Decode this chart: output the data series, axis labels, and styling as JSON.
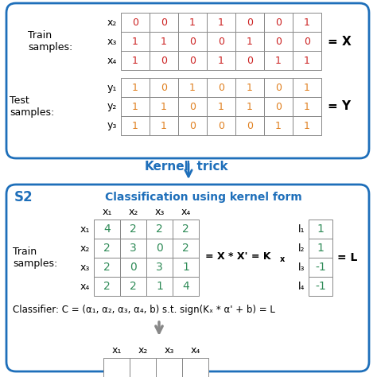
{
  "top_box": {
    "train_rows": [
      "x₂",
      "x₃",
      "x₄"
    ],
    "test_rows": [
      "y₁",
      "y₂",
      "y₃"
    ],
    "train_data": [
      [
        0,
        0,
        1,
        1,
        0,
        0,
        1
      ],
      [
        1,
        1,
        0,
        0,
        1,
        0,
        0
      ],
      [
        1,
        0,
        0,
        1,
        0,
        1,
        1
      ]
    ],
    "test_data": [
      [
        1,
        0,
        1,
        0,
        1,
        0,
        1
      ],
      [
        1,
        1,
        0,
        1,
        1,
        0,
        1
      ],
      [
        1,
        1,
        0,
        0,
        0,
        1,
        1
      ]
    ]
  },
  "bottom_box": {
    "col_headers": [
      "x₁",
      "x₂",
      "x₃",
      "x₄"
    ],
    "row_headers": [
      "x₁",
      "x₂",
      "x₃",
      "x₄"
    ],
    "matrix": [
      [
        4,
        2,
        2,
        2
      ],
      [
        2,
        3,
        0,
        2
      ],
      [
        2,
        0,
        3,
        1
      ],
      [
        2,
        2,
        1,
        4
      ]
    ],
    "L_rows": [
      "l₁",
      "l₂",
      "l₃",
      "l₄"
    ],
    "L_vals": [
      "1",
      "1",
      "-1",
      "-1"
    ]
  },
  "colors": {
    "blue_border": "#1E6FBA",
    "teal_matrix": "#2E8B57",
    "orange_data": "#E08020",
    "dark_red": "#CC2222",
    "blue_text": "#1E6FBA",
    "grid_line": "#888888",
    "arrow_gray": "#888888"
  }
}
